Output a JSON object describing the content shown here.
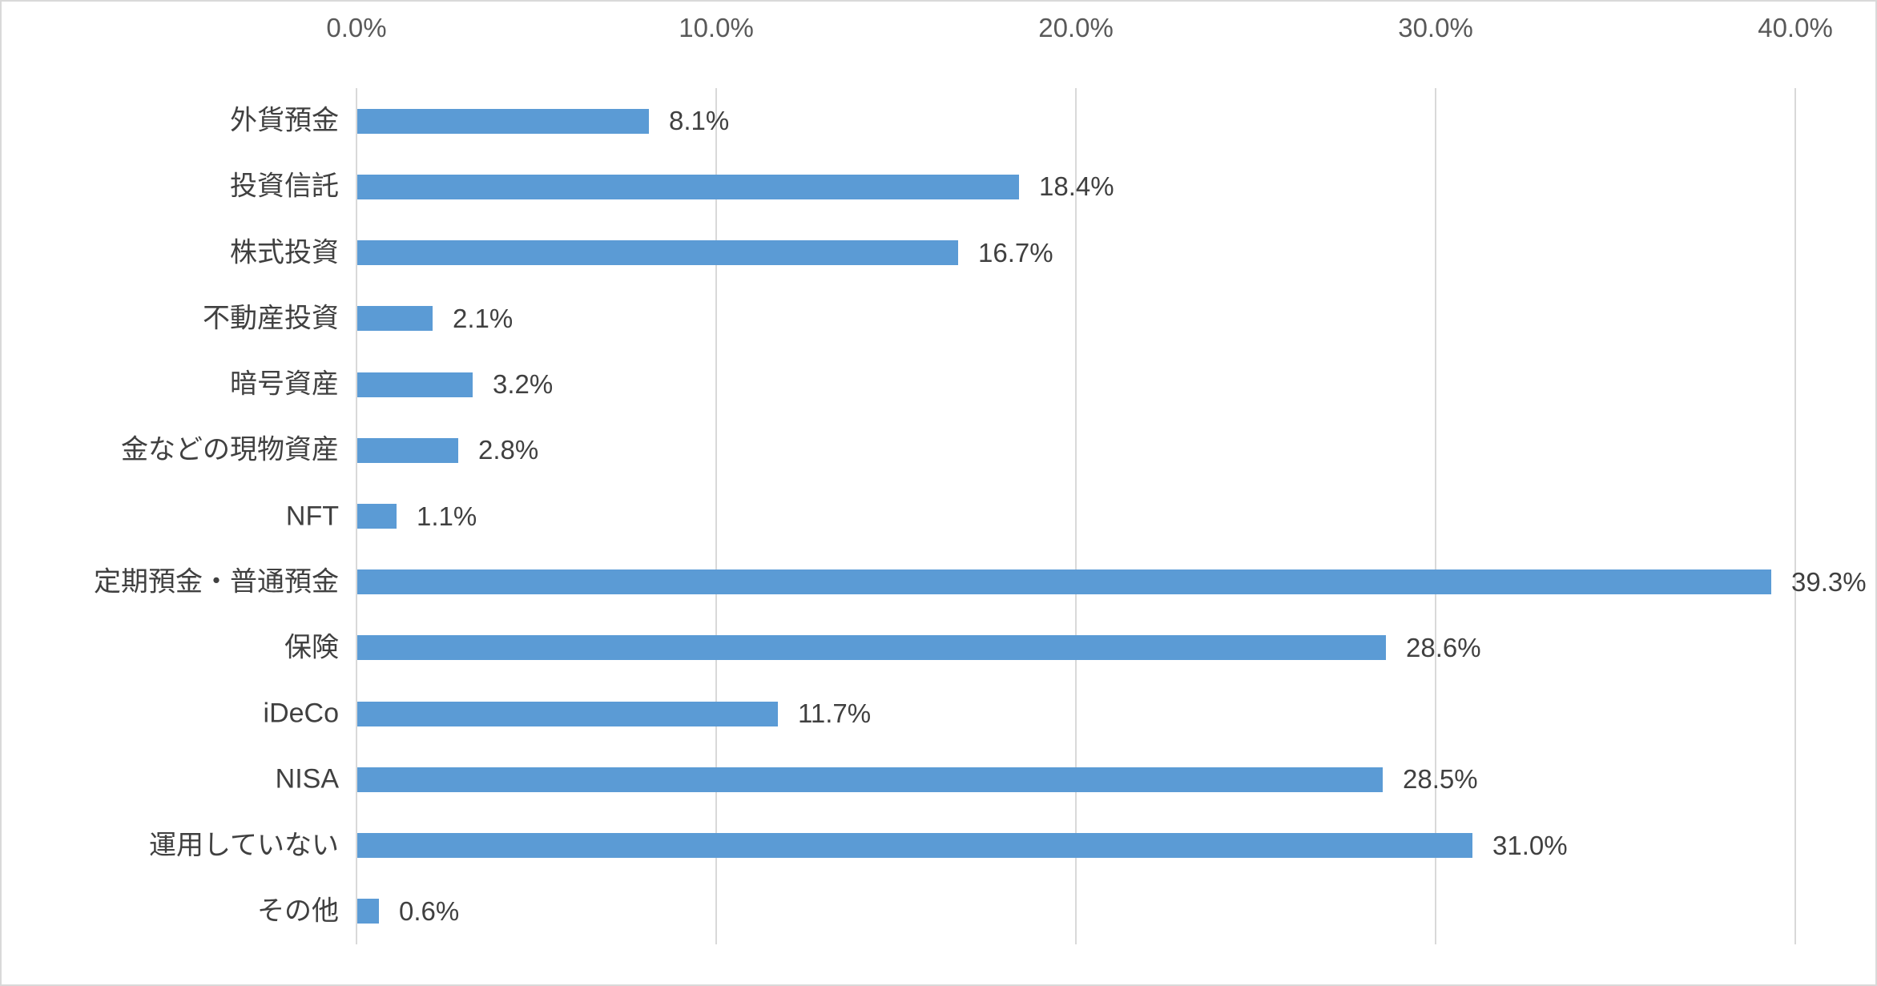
{
  "chart_data": {
    "type": "bar",
    "orientation": "horizontal",
    "title": "",
    "xlabel": "",
    "ylabel": "",
    "legend": false,
    "grid": true,
    "axis_position": "top",
    "xlim": [
      0,
      40
    ],
    "x_ticks": {
      "values": [
        0,
        10,
        20,
        30,
        40
      ],
      "labels": [
        "0.0%",
        "10.0%",
        "20.0%",
        "30.0%",
        "40.0%"
      ]
    },
    "categories": [
      "外貨預金",
      "投資信託",
      "株式投資",
      "不動産投資",
      "暗号資産",
      "金などの現物資産",
      "NFT",
      "定期預金・普通預金",
      "保険",
      "iDeCo",
      "NISA",
      "運用していない",
      "その他"
    ],
    "values": [
      8.1,
      18.4,
      16.7,
      2.1,
      3.2,
      2.8,
      1.1,
      39.3,
      28.6,
      11.7,
      28.5,
      31.0,
      0.6
    ],
    "data_labels": [
      "8.1%",
      "18.4%",
      "16.7%",
      "2.1%",
      "3.2%",
      "2.8%",
      "1.1%",
      "39.3%",
      "28.6%",
      "11.7%",
      "28.5%",
      "31.0%",
      "0.6%"
    ],
    "colors": {
      "bar": "#5B9BD5",
      "gridline": "#D9D9D9",
      "axis_line": "#D9D9D9",
      "tick_text": "#595959",
      "label_text": "#404040",
      "border": "#D9D9D9",
      "background": "#FFFFFF"
    }
  }
}
